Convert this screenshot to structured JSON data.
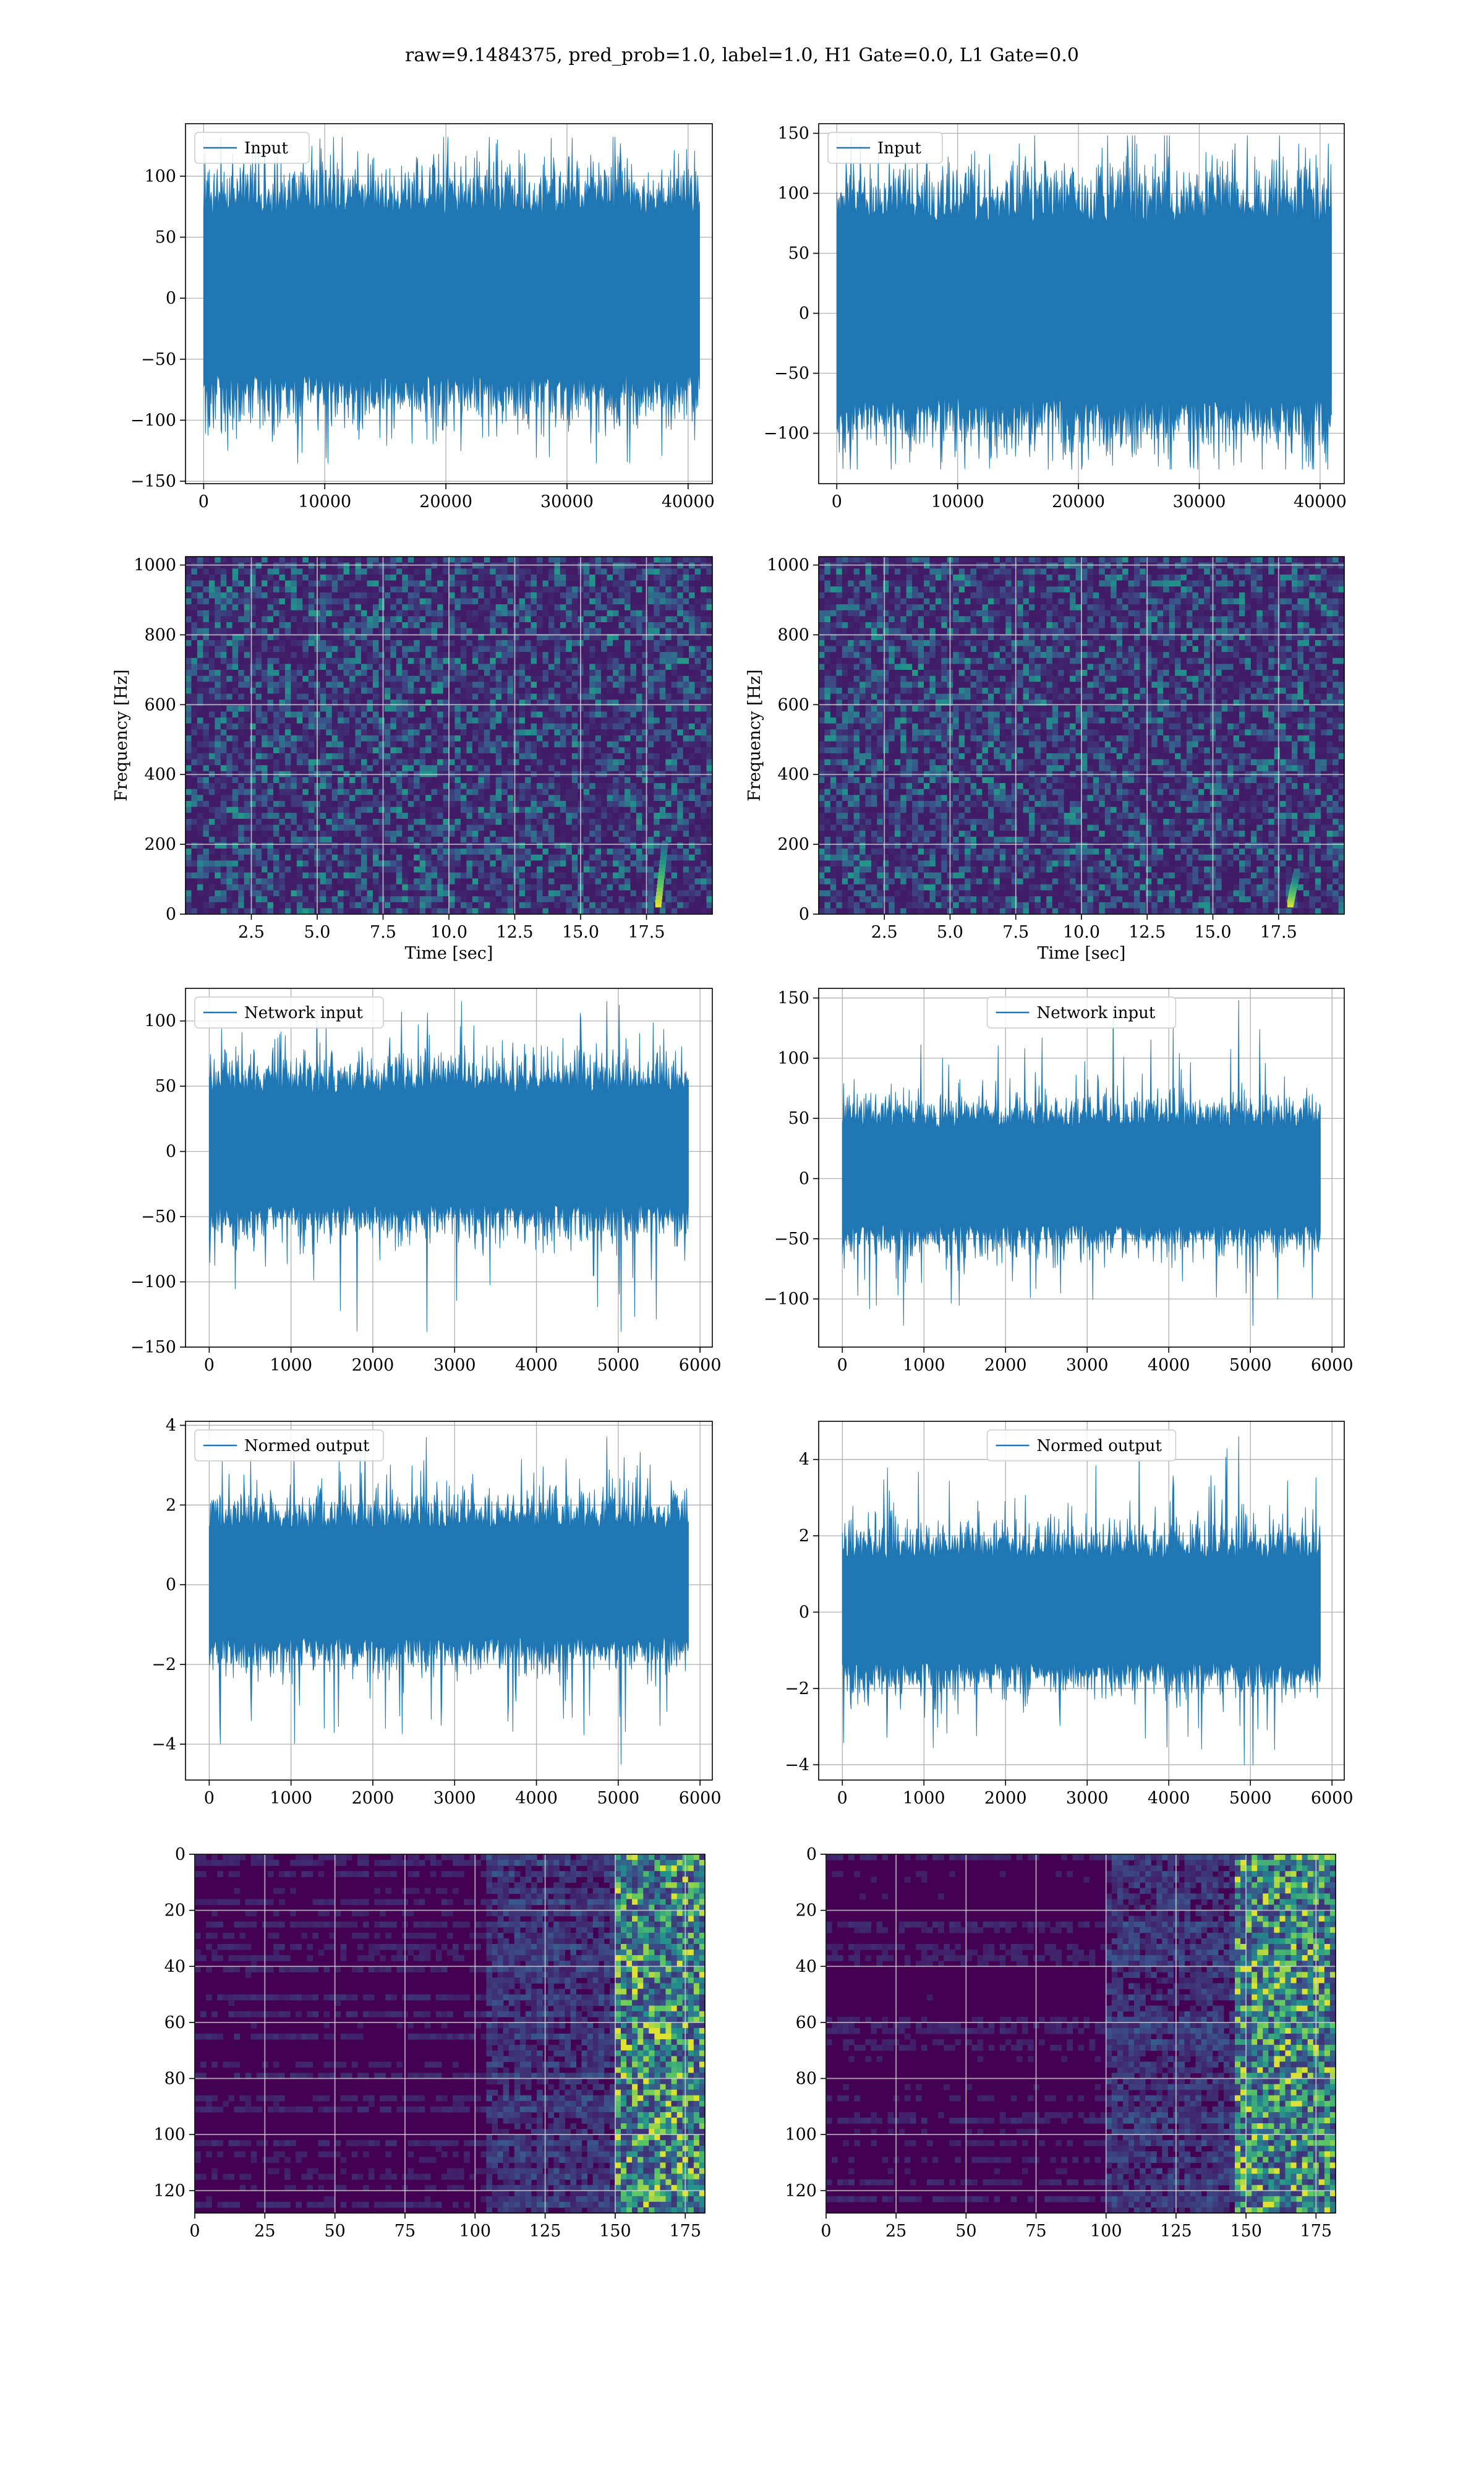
{
  "figure": {
    "suptitle": "raw=9.1484375, pred_prob=1.0, label=1.0, H1 Gate=0.0, L1 Gate=0.0"
  },
  "colors": {
    "series": "#1f77b4",
    "viridis_dark": "#440154",
    "viridis_mid": "#21918c",
    "viridis_bright": "#fde725",
    "grid": "#b0b0b0"
  },
  "chart_data": [
    {
      "id": "input-h1",
      "type": "line",
      "legend": "Input",
      "legend_pos": "upper-left",
      "xlim": [
        -1500,
        42000
      ],
      "ylim": [
        -152,
        143
      ],
      "xticks": [
        0,
        10000,
        20000,
        30000,
        40000
      ],
      "xtick_labels": [
        "0",
        "10000",
        "20000",
        "30000",
        "40000"
      ],
      "yticks": [
        -150,
        -100,
        -50,
        0,
        50,
        100
      ],
      "ytick_labels": [
        "−150",
        "−100",
        "−50",
        "0",
        "50",
        "100"
      ],
      "n_samples": 40960,
      "x_start": 0,
      "x_end": 40960,
      "body_range": [
        -62,
        68
      ],
      "peak_max": 132,
      "peak_min": -135,
      "grid": true
    },
    {
      "id": "input-l1",
      "type": "line",
      "legend": "Input",
      "legend_pos": "upper-left",
      "xlim": [
        -1500,
        42000
      ],
      "ylim": [
        -142,
        158
      ],
      "xticks": [
        0,
        10000,
        20000,
        30000,
        40000
      ],
      "xtick_labels": [
        "0",
        "10000",
        "20000",
        "30000",
        "40000"
      ],
      "yticks": [
        -100,
        -50,
        0,
        50,
        100,
        150
      ],
      "ytick_labels": [
        "−100",
        "−50",
        "0",
        "50",
        "100",
        "150"
      ],
      "n_samples": 40960,
      "x_start": 0,
      "x_end": 40960,
      "body_range": [
        -70,
        75
      ],
      "peak_max": 148,
      "peak_min": -130,
      "grid": true
    },
    {
      "id": "spec-h1",
      "type": "heatmap",
      "colormap": "viridis",
      "xlabel": "Time [sec]",
      "ylabel": "Frequency [Hz]",
      "xlim": [
        0,
        20
      ],
      "ylim": [
        0,
        1024
      ],
      "xticks": [
        2.5,
        5.0,
        7.5,
        10.0,
        12.5,
        15.0,
        17.5
      ],
      "xtick_labels": [
        "2.5",
        "5.0",
        "7.5",
        "10.0",
        "12.5",
        "15.0",
        "17.5"
      ],
      "yticks": [
        0,
        200,
        400,
        600,
        800,
        1000
      ],
      "ytick_labels": [
        "0",
        "200",
        "400",
        "600",
        "800",
        "1000"
      ],
      "chirp": {
        "t_center": 18.2,
        "f_low": 30,
        "f_high": 200
      },
      "grid": true
    },
    {
      "id": "spec-l1",
      "type": "heatmap",
      "colormap": "viridis",
      "xlabel": "Time [sec]",
      "ylabel": "Frequency [Hz]",
      "xlim": [
        0,
        20
      ],
      "ylim": [
        0,
        1024
      ],
      "xticks": [
        2.5,
        5.0,
        7.5,
        10.0,
        12.5,
        15.0,
        17.5
      ],
      "xtick_labels": [
        "2.5",
        "5.0",
        "7.5",
        "10.0",
        "12.5",
        "15.0",
        "17.5"
      ],
      "yticks": [
        0,
        200,
        400,
        600,
        800,
        1000
      ],
      "ytick_labels": [
        "0",
        "200",
        "400",
        "600",
        "800",
        "1000"
      ],
      "chirp": {
        "t_center": 18.2,
        "f_low": 30,
        "f_high": 120
      },
      "grid": true
    },
    {
      "id": "net-h1",
      "type": "line",
      "legend": "Network input",
      "legend_pos": "upper-left",
      "xlim": [
        -290,
        6150
      ],
      "ylim": [
        -150,
        125
      ],
      "xticks": [
        0,
        1000,
        2000,
        3000,
        4000,
        5000,
        6000
      ],
      "xtick_labels": [
        "0",
        "1000",
        "2000",
        "3000",
        "4000",
        "5000",
        "6000"
      ],
      "yticks": [
        -150,
        -100,
        -50,
        0,
        50,
        100
      ],
      "ytick_labels": [
        "−150",
        "−100",
        "−50",
        "0",
        "50",
        "100"
      ],
      "n_samples": 5860,
      "x_start": 0,
      "x_end": 5860,
      "body_range": [
        -40,
        45
      ],
      "peak_max": 115,
      "peak_min": -138,
      "grid": true
    },
    {
      "id": "net-l1",
      "type": "line",
      "legend": "Network input",
      "legend_pos": "upper-center",
      "xlim": [
        -290,
        6150
      ],
      "ylim": [
        -140,
        158
      ],
      "xticks": [
        0,
        1000,
        2000,
        3000,
        4000,
        5000,
        6000
      ],
      "xtick_labels": [
        "0",
        "1000",
        "2000",
        "3000",
        "4000",
        "5000",
        "6000"
      ],
      "yticks": [
        -100,
        -50,
        0,
        50,
        100,
        150
      ],
      "ytick_labels": [
        "−100",
        "−50",
        "0",
        "50",
        "100",
        "150"
      ],
      "n_samples": 5860,
      "x_start": 0,
      "x_end": 5860,
      "body_range": [
        -38,
        42
      ],
      "peak_max": 148,
      "peak_min": -122,
      "grid": true
    },
    {
      "id": "norm-h1",
      "type": "line",
      "legend": "Normed output",
      "legend_pos": "upper-left",
      "xlim": [
        -290,
        6150
      ],
      "ylim": [
        -4.9,
        4.1
      ],
      "xticks": [
        0,
        1000,
        2000,
        3000,
        4000,
        5000,
        6000
      ],
      "xtick_labels": [
        "0",
        "1000",
        "2000",
        "3000",
        "4000",
        "5000",
        "6000"
      ],
      "yticks": [
        -4,
        -2,
        0,
        2,
        4
      ],
      "ytick_labels": [
        "−4",
        "−2",
        "0",
        "2",
        "4"
      ],
      "n_samples": 5860,
      "x_start": 0,
      "x_end": 5860,
      "body_range": [
        -1.3,
        1.4
      ],
      "peak_max": 3.7,
      "peak_min": -4.5,
      "grid": true
    },
    {
      "id": "norm-l1",
      "type": "line",
      "legend": "Normed output",
      "legend_pos": "upper-center",
      "xlim": [
        -290,
        6150
      ],
      "ylim": [
        -4.4,
        5.0
      ],
      "xticks": [
        0,
        1000,
        2000,
        3000,
        4000,
        5000,
        6000
      ],
      "xtick_labels": [
        "0",
        "1000",
        "2000",
        "3000",
        "4000",
        "5000",
        "6000"
      ],
      "yticks": [
        -4,
        -2,
        0,
        2,
        4
      ],
      "ytick_labels": [
        "−4",
        "−2",
        "0",
        "2",
        "4"
      ],
      "n_samples": 5860,
      "x_start": 0,
      "x_end": 5860,
      "body_range": [
        -1.3,
        1.4
      ],
      "peak_max": 4.6,
      "peak_min": -4.0,
      "grid": true
    },
    {
      "id": "feat-h1",
      "type": "heatmap",
      "colormap": "viridis",
      "xlim": [
        0,
        182
      ],
      "ylim": [
        128,
        0
      ],
      "rows": 128,
      "cols": 182,
      "xticks": [
        0,
        25,
        50,
        75,
        100,
        125,
        150,
        175
      ],
      "xtick_labels": [
        "0",
        "25",
        "50",
        "75",
        "100",
        "125",
        "150",
        "175"
      ],
      "yticks": [
        0,
        20,
        40,
        60,
        80,
        100,
        120
      ],
      "ytick_labels": [
        "0",
        "20",
        "40",
        "60",
        "80",
        "100",
        "120"
      ],
      "active_cols": [
        150,
        182
      ],
      "grid": true
    },
    {
      "id": "feat-l1",
      "type": "heatmap",
      "colormap": "viridis",
      "xlim": [
        0,
        182
      ],
      "ylim": [
        128,
        0
      ],
      "rows": 128,
      "cols": 182,
      "xticks": [
        0,
        25,
        50,
        75,
        100,
        125,
        150,
        175
      ],
      "xtick_labels": [
        "0",
        "25",
        "50",
        "75",
        "100",
        "125",
        "150",
        "175"
      ],
      "yticks": [
        0,
        20,
        40,
        60,
        80,
        100,
        120
      ],
      "ytick_labels": [
        "0",
        "20",
        "40",
        "60",
        "80",
        "100",
        "120"
      ],
      "active_cols": [
        145,
        182
      ],
      "grid": true
    }
  ]
}
